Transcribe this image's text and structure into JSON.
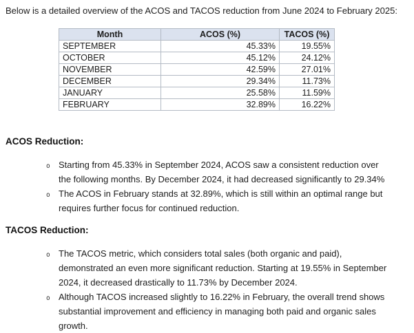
{
  "intro": "Below is a detailed overview of the ACOS and TACOS reduction from June 2024 to February 2025:",
  "bullet_marker": "o",
  "theme": {
    "header_bg": "#dbe2ef",
    "border": "#b3bac4",
    "text": "#1c1c1c"
  },
  "table": {
    "headers": [
      "Month",
      "ACOS (%)",
      "TACOS (%)"
    ],
    "rows": [
      {
        "month": "SEPTEMBER",
        "acos": "45.33%",
        "tacos": "19.55%"
      },
      {
        "month": "OCTOBER",
        "acos": "45.12%",
        "tacos": "24.12%"
      },
      {
        "month": "NOVEMBER",
        "acos": "42.59%",
        "tacos": "27.01%"
      },
      {
        "month": "DECEMBER",
        "acos": "29.34%",
        "tacos": "11.73%"
      },
      {
        "month": "JANUARY",
        "acos": "25.58%",
        "tacos": "11.59%"
      },
      {
        "month": "FEBRUARY",
        "acos": "32.89%",
        "tacos": "16.22%"
      }
    ]
  },
  "sections": [
    {
      "heading": "ACOS Reduction:",
      "bullets": [
        "Starting from 45.33% in September 2024, ACOS saw a consistent reduction over the following months. By December 2024, it had decreased significantly to 29.34%",
        "The ACOS in February stands at 32.89%, which is still within an optimal range but requires further focus for continued reduction."
      ]
    },
    {
      "heading": "TACOS Reduction:",
      "bullets": [
        "The TACOS metric, which considers total sales (both organic and paid), demonstrated an even more significant reduction. Starting at 19.55% in September 2024, it decreased drastically to 11.73% by December 2024.",
        "Although TACOS increased slightly to 16.22% in February, the overall trend shows substantial improvement and efficiency in managing both paid and organic sales growth."
      ]
    }
  ]
}
